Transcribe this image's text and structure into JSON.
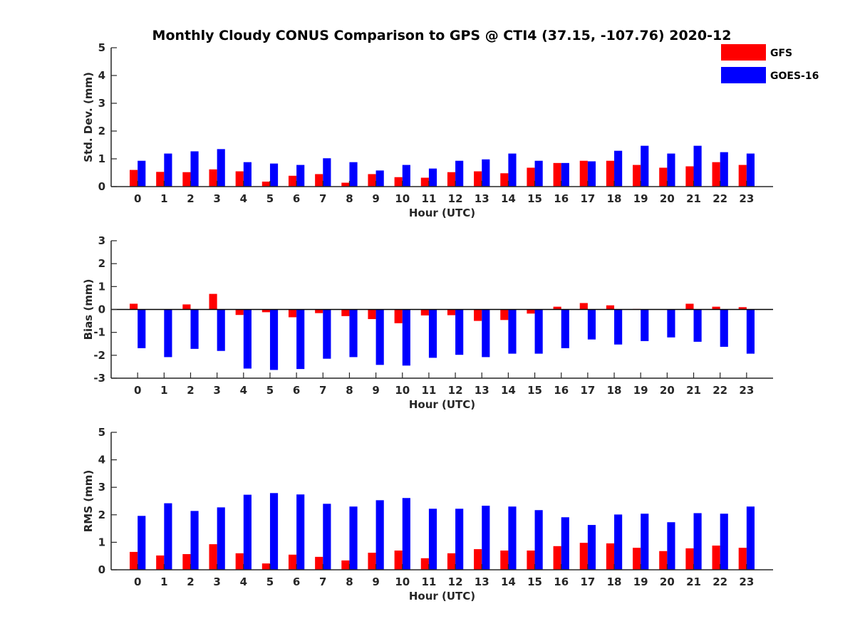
{
  "figure": {
    "title": "Monthly Cloudy CONUS Comparison to GPS @ CTI4 (37.15, -107.76) 2020-12",
    "legend": {
      "placement": "top-right",
      "entries": [
        {
          "name": "GFS",
          "color": "#ff0000"
        },
        {
          "name": "GOES-16",
          "color": "#0000ff"
        }
      ]
    }
  },
  "chart_data": [
    {
      "type": "bar",
      "title": "Monthly Cloudy CONUS Comparison to GPS @ CTI4 (37.15, -107.76) 2020-12",
      "xlabel": "Hour (UTC)",
      "ylabel": "Std. Dev. (mm)",
      "ylim": [
        0,
        5
      ],
      "yticks": [
        0,
        1,
        2,
        3,
        4,
        5
      ],
      "grid": false,
      "legend": "top-right",
      "categories": [
        "0",
        "1",
        "2",
        "3",
        "4",
        "5",
        "6",
        "7",
        "8",
        "9",
        "10",
        "11",
        "12",
        "13",
        "14",
        "15",
        "16",
        "17",
        "18",
        "19",
        "20",
        "21",
        "22",
        "23"
      ],
      "series": [
        {
          "name": "GFS",
          "color": "#ff0000",
          "values": [
            0.6,
            0.53,
            0.52,
            0.62,
            0.55,
            0.18,
            0.39,
            0.45,
            0.14,
            0.45,
            0.34,
            0.32,
            0.52,
            0.55,
            0.48,
            0.68,
            0.85,
            0.93,
            0.93,
            0.78,
            0.68,
            0.73,
            0.88,
            0.78
          ]
        },
        {
          "name": "GOES-16",
          "color": "#0000ff",
          "values": [
            0.93,
            1.19,
            1.27,
            1.35,
            0.88,
            0.83,
            0.78,
            1.02,
            0.88,
            0.58,
            0.78,
            0.65,
            0.93,
            0.98,
            1.19,
            0.93,
            0.85,
            0.91,
            1.29,
            1.47,
            1.19,
            1.47,
            1.24,
            1.19
          ]
        }
      ]
    },
    {
      "type": "bar",
      "xlabel": "Hour (UTC)",
      "ylabel": "Bias (mm)",
      "ylim": [
        -3,
        3
      ],
      "yticks": [
        -3,
        -2,
        -1,
        0,
        1,
        2,
        3
      ],
      "grid": false,
      "categories": [
        "0",
        "1",
        "2",
        "3",
        "4",
        "5",
        "6",
        "7",
        "8",
        "9",
        "10",
        "11",
        "12",
        "13",
        "14",
        "15",
        "16",
        "17",
        "18",
        "19",
        "20",
        "21",
        "22",
        "23"
      ],
      "series": [
        {
          "name": "GFS",
          "color": "#ff0000",
          "values": [
            0.25,
            0.0,
            0.22,
            0.68,
            -0.24,
            -0.12,
            -0.34,
            -0.16,
            -0.29,
            -0.42,
            -0.6,
            -0.26,
            -0.25,
            -0.5,
            -0.46,
            -0.18,
            0.12,
            0.28,
            0.18,
            0.02,
            0.0,
            0.25,
            0.12,
            0.1
          ]
        },
        {
          "name": "GOES-16",
          "color": "#0000ff",
          "values": [
            -1.69,
            -2.08,
            -1.72,
            -1.81,
            -2.58,
            -2.64,
            -2.6,
            -2.15,
            -2.08,
            -2.42,
            -2.45,
            -2.11,
            -1.98,
            -2.08,
            -1.93,
            -1.93,
            -1.69,
            -1.31,
            -1.53,
            -1.38,
            -1.22,
            -1.41,
            -1.63,
            -1.93
          ]
        }
      ]
    },
    {
      "type": "bar",
      "xlabel": "Hour (UTC)",
      "ylabel": "RMS (mm)",
      "ylim": [
        0,
        5
      ],
      "yticks": [
        0,
        1,
        2,
        3,
        4,
        5
      ],
      "grid": false,
      "categories": [
        "0",
        "1",
        "2",
        "3",
        "4",
        "5",
        "6",
        "7",
        "8",
        "9",
        "10",
        "11",
        "12",
        "13",
        "14",
        "15",
        "16",
        "17",
        "18",
        "19",
        "20",
        "21",
        "22",
        "23"
      ],
      "series": [
        {
          "name": "GFS",
          "color": "#ff0000",
          "values": [
            0.65,
            0.52,
            0.57,
            0.93,
            0.6,
            0.23,
            0.55,
            0.47,
            0.34,
            0.62,
            0.7,
            0.42,
            0.6,
            0.75,
            0.7,
            0.7,
            0.86,
            0.98,
            0.96,
            0.8,
            0.68,
            0.78,
            0.88,
            0.8
          ]
        },
        {
          "name": "GOES-16",
          "color": "#0000ff",
          "values": [
            1.96,
            2.42,
            2.14,
            2.27,
            2.73,
            2.79,
            2.74,
            2.4,
            2.3,
            2.53,
            2.61,
            2.22,
            2.22,
            2.33,
            2.3,
            2.17,
            1.91,
            1.63,
            2.01,
            2.04,
            1.73,
            2.06,
            2.04,
            2.3
          ]
        }
      ]
    }
  ]
}
